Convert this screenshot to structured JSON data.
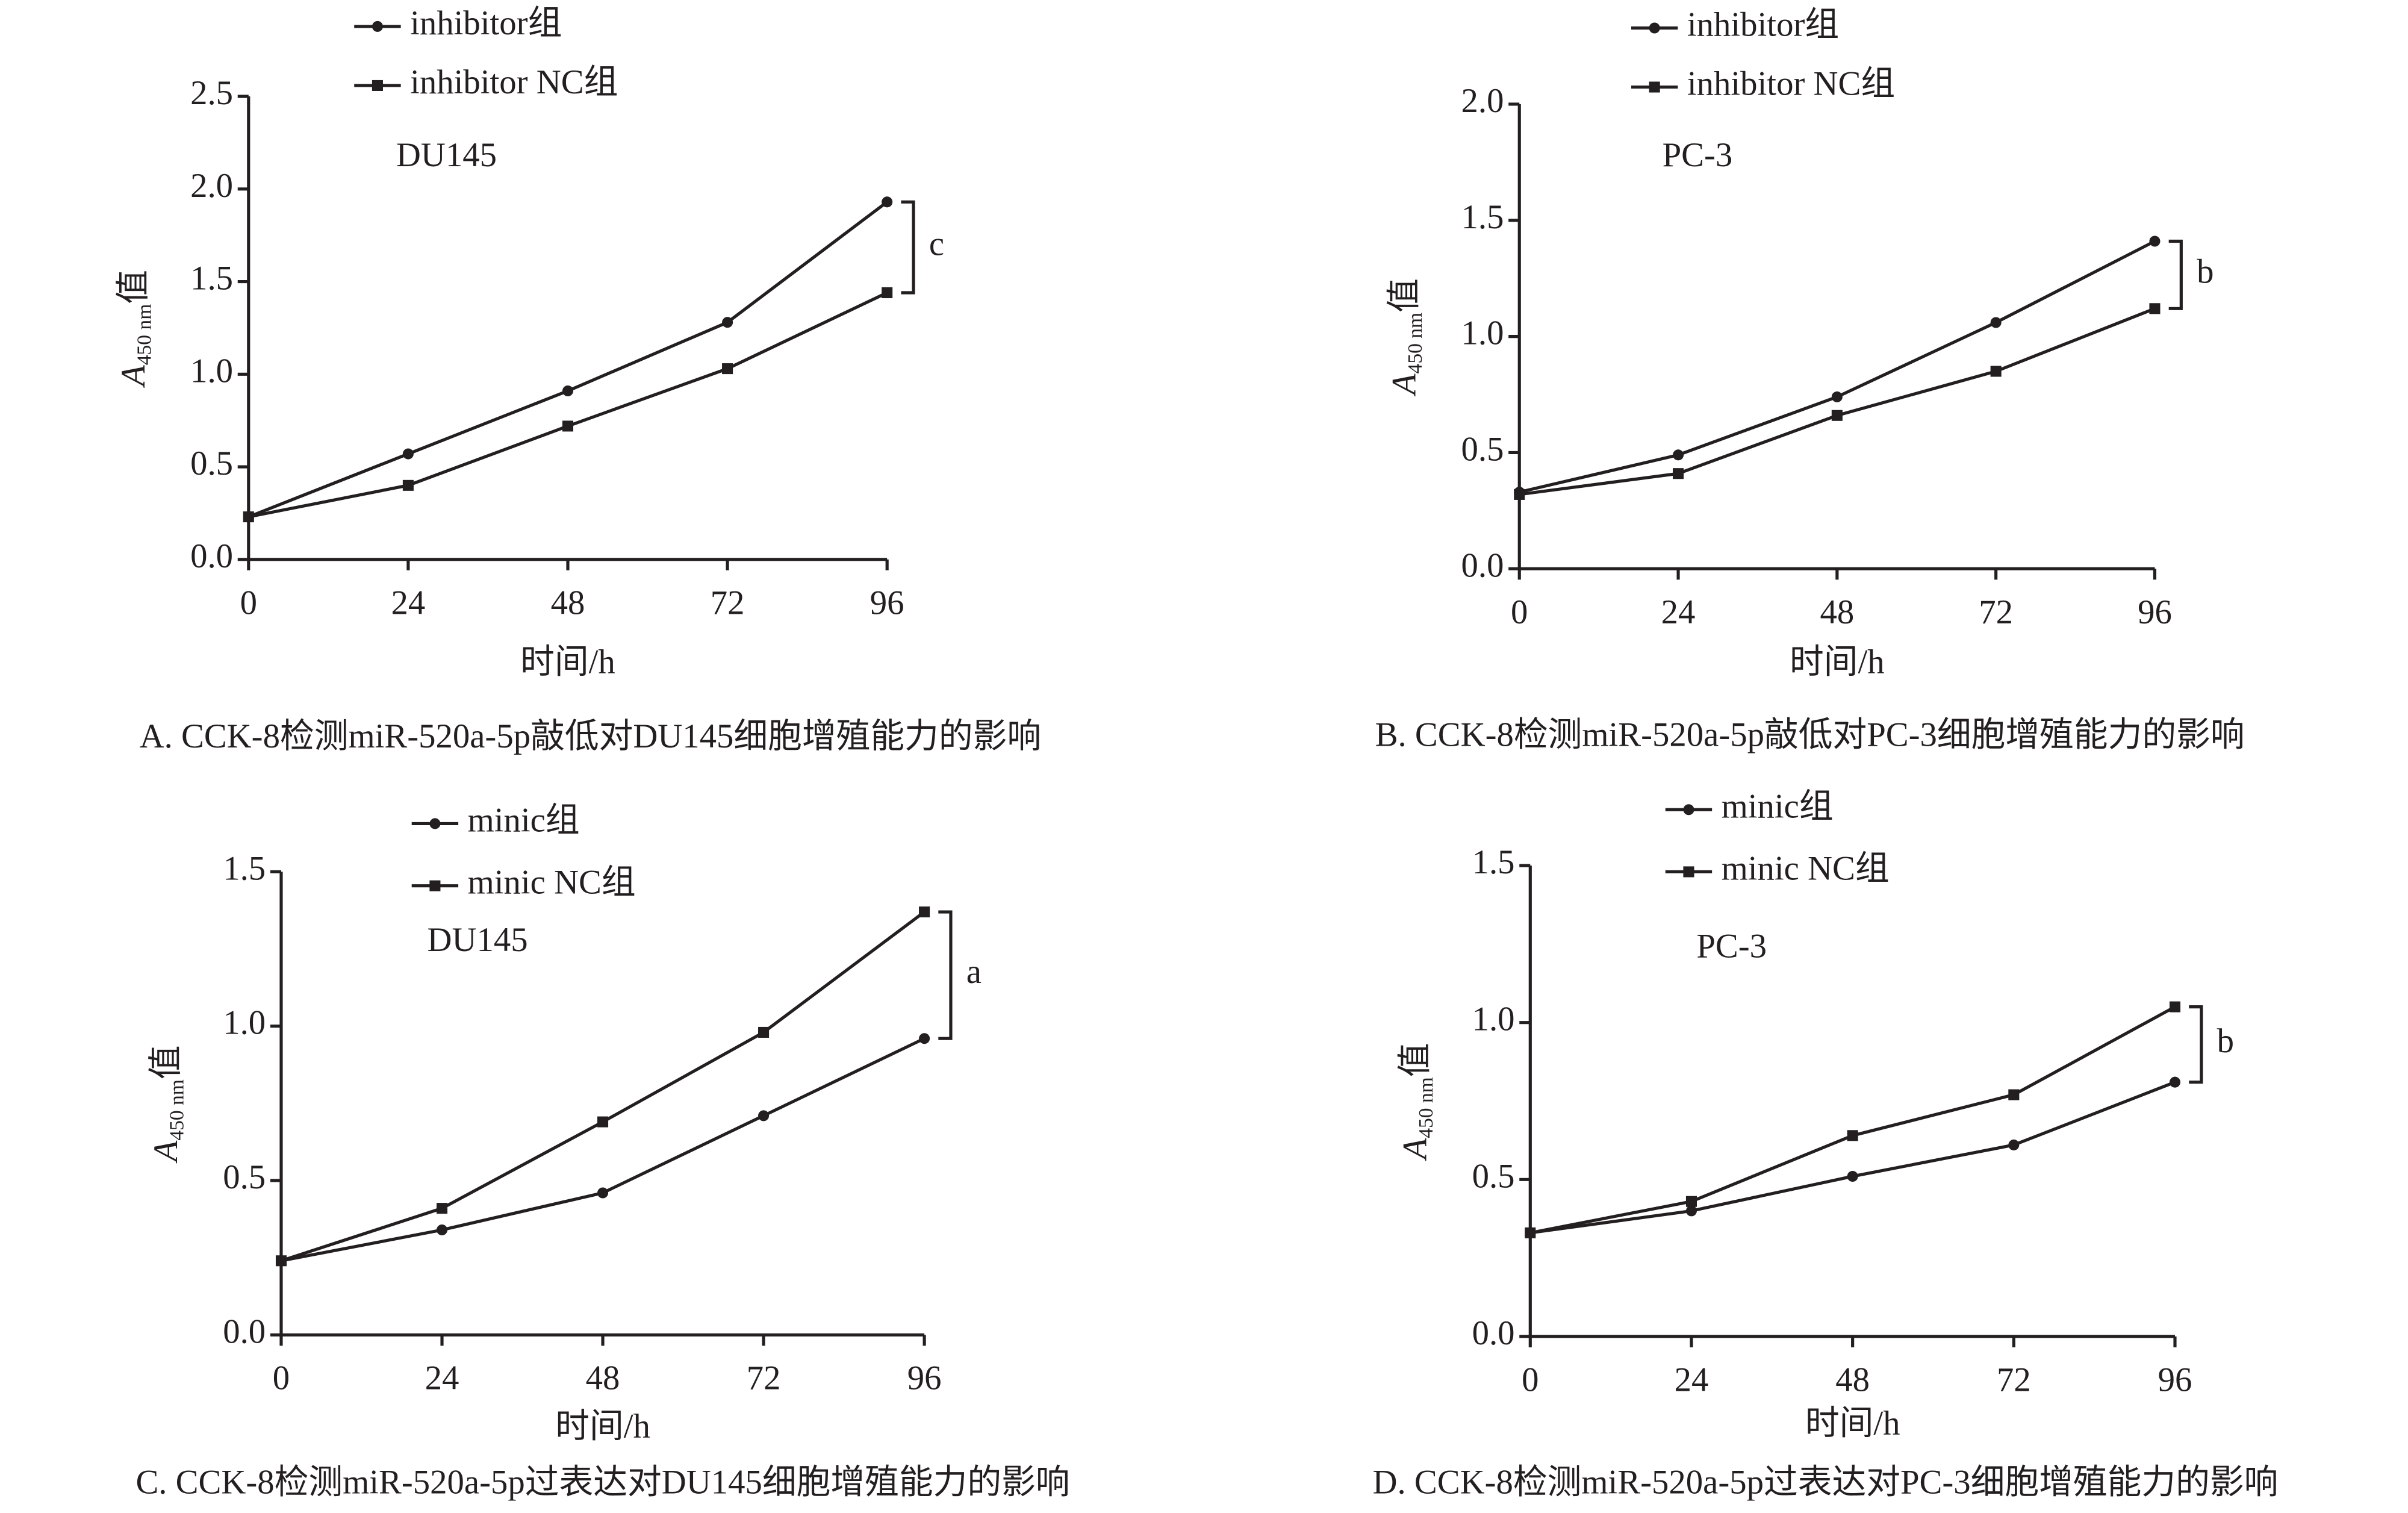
{
  "chart_data": [
    {
      "type": "line",
      "caption": "A. CCK-8检测miR-520a-5p敲低对DU145细胞增殖能力的影响",
      "cell_line": "DU145",
      "significance": "c",
      "x_label": "时间/h",
      "y_label": {
        "symbol": "A",
        "subscript": "450 nm",
        "suffix": "值"
      },
      "x": [
        0,
        24,
        48,
        72,
        96
      ],
      "xlim": [
        0,
        96
      ],
      "xticks": [
        0,
        24,
        48,
        72,
        96
      ],
      "ylim": [
        0,
        2.5
      ],
      "yticks": [
        {
          "value": 0,
          "label": "0.0"
        },
        0.5,
        {
          "value": 1,
          "label": "1.0"
        },
        1.5,
        {
          "value": 2,
          "label": "2.0"
        },
        2.5
      ],
      "series": [
        {
          "name": "inhibitor组",
          "color": "#231f20",
          "marker": "circle",
          "values": [
            0.23,
            0.57,
            0.91,
            1.28,
            1.93
          ]
        },
        {
          "name": "inhibitor NC组",
          "color": "#231f20",
          "marker": "square",
          "values": [
            0.23,
            0.4,
            0.72,
            1.03,
            1.44
          ]
        }
      ]
    },
    {
      "type": "line",
      "caption": "B. CCK-8检测miR-520a-5p敲低对PC-3细胞增殖能力的影响",
      "cell_line": "PC-3",
      "significance": "b",
      "x_label": "时间/h",
      "y_label": {
        "symbol": "A",
        "subscript": "450 nm",
        "suffix": "值"
      },
      "x": [
        0,
        24,
        48,
        72,
        96
      ],
      "xlim": [
        0,
        96
      ],
      "xticks": [
        0,
        24,
        48,
        72,
        96
      ],
      "ylim": [
        0,
        2
      ],
      "yticks": [
        {
          "value": 0,
          "label": "0.0"
        },
        0.5,
        {
          "value": 1,
          "label": "1.0"
        },
        1.5,
        {
          "value": 2,
          "label": "2.0"
        }
      ],
      "series": [
        {
          "name": "inhibitor组",
          "color": "#231f20",
          "marker": "circle",
          "values": [
            0.33,
            0.49,
            0.74,
            1.06,
            1.41
          ]
        },
        {
          "name": "inhibitor NC组",
          "color": "#231f20",
          "marker": "square",
          "values": [
            0.32,
            0.41,
            0.66,
            0.85,
            1.12
          ]
        }
      ]
    },
    {
      "type": "line",
      "caption": "C. CCK-8检测miR-520a-5p过表达对DU145细胞增殖能力的影响",
      "cell_line": "DU145",
      "significance": "a",
      "x_label": "时间/h",
      "y_label": {
        "symbol": "A",
        "subscript": "450 nm",
        "suffix": "值"
      },
      "x": [
        0,
        24,
        48,
        72,
        96
      ],
      "xlim": [
        0,
        96
      ],
      "xticks": [
        0,
        24,
        48,
        72,
        96
      ],
      "ylim": [
        0,
        1.5
      ],
      "yticks": [
        {
          "value": 0,
          "label": "0.0"
        },
        0.5,
        {
          "value": 1,
          "label": "1.0"
        },
        1.5
      ],
      "series": [
        {
          "name": "minic组",
          "color": "#231f20",
          "marker": "circle",
          "values": [
            0.24,
            0.34,
            0.46,
            0.71,
            0.96
          ]
        },
        {
          "name": "minic NC组",
          "color": "#231f20",
          "marker": "square",
          "values": [
            0.24,
            0.41,
            0.69,
            0.98,
            1.37
          ]
        }
      ]
    },
    {
      "type": "line",
      "caption": "D. CCK-8检测miR-520a-5p过表达对PC-3细胞增殖能力的影响",
      "cell_line": "PC-3",
      "significance": "b",
      "x_label": "时间/h",
      "y_label": {
        "symbol": "A",
        "subscript": "450 nm",
        "suffix": "值"
      },
      "x": [
        0,
        24,
        48,
        72,
        96
      ],
      "xlim": [
        0,
        96
      ],
      "xticks": [
        0,
        24,
        48,
        72,
        96
      ],
      "ylim": [
        0,
        1.5
      ],
      "yticks": [
        {
          "value": 0,
          "label": "0.0"
        },
        0.5,
        {
          "value": 1,
          "label": "1.0"
        },
        1.5
      ],
      "series": [
        {
          "name": "minic组",
          "color": "#231f20",
          "marker": "circle",
          "values": [
            0.33,
            0.4,
            0.51,
            0.61,
            0.81
          ]
        },
        {
          "name": "minic NC组",
          "color": "#231f20",
          "marker": "square",
          "values": [
            0.33,
            0.43,
            0.64,
            0.77,
            1.05
          ]
        }
      ]
    }
  ]
}
